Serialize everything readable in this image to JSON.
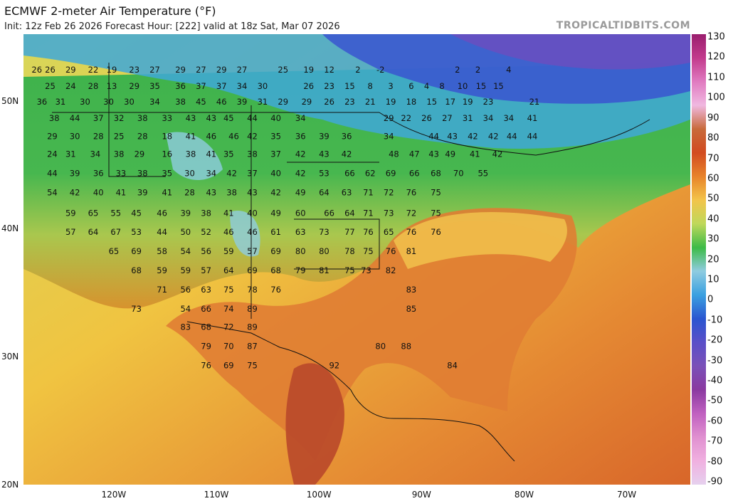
{
  "header": {
    "title": "ECMWF 2-meter Air Temperature (°F)",
    "subtitle": "Init: 12z Feb 26 2026   Forecast Hour: [222]   valid at 18z Sat, Mar 07 2026",
    "credit": "TROPICALTIDBITS.COM"
  },
  "axes": {
    "lat_labels": [
      "50N",
      "40N",
      "30N",
      "20N"
    ],
    "lon_labels": [
      "120W",
      "110W",
      "100W",
      "90W",
      "80W",
      "70W"
    ]
  },
  "colorbar": {
    "labels": [
      "130",
      "120",
      "110",
      "100",
      "90",
      "80",
      "70",
      "60",
      "50",
      "40",
      "30",
      "20",
      "10",
      "0",
      "-10",
      "-20",
      "-30",
      "-40",
      "-50",
      "-60",
      "-70",
      "-80",
      "-90"
    ],
    "colors": [
      "#9a1e6e",
      "#c23a8c",
      "#e07ac0",
      "#f0b8e0",
      "#c86a3a",
      "#d24b20",
      "#e8832a",
      "#f3c44a",
      "#bfd85a",
      "#3dbb47",
      "#8fcce0",
      "#3aa0e0",
      "#2a55d0",
      "#5a4fc8",
      "#7a50b8",
      "#8a3aa0",
      "#c060c0",
      "#e090d0",
      "#f0b0e0",
      "#e6d0ee"
    ]
  },
  "temps": [
    {
      "v": "26",
      "lon": -127.5,
      "lat": 52.4
    },
    {
      "v": "26",
      "lon": -126.2,
      "lat": 52.4
    },
    {
      "v": "29",
      "lon": -124.2,
      "lat": 52.4
    },
    {
      "v": "22",
      "lon": -122.0,
      "lat": 52.4
    },
    {
      "v": "19",
      "lon": -120.2,
      "lat": 52.4
    },
    {
      "v": "23",
      "lon": -118.0,
      "lat": 52.4
    },
    {
      "v": "27",
      "lon": -116.0,
      "lat": 52.4
    },
    {
      "v": "29",
      "lon": -113.5,
      "lat": 52.4
    },
    {
      "v": "27",
      "lon": -111.5,
      "lat": 52.4
    },
    {
      "v": "29",
      "lon": -109.5,
      "lat": 52.4
    },
    {
      "v": "27",
      "lon": -107.5,
      "lat": 52.4
    },
    {
      "v": "25",
      "lon": -103.5,
      "lat": 52.4
    },
    {
      "v": "19",
      "lon": -101.0,
      "lat": 52.4
    },
    {
      "v": "12",
      "lon": -99.0,
      "lat": 52.4
    },
    {
      "v": "2",
      "lon": -96.2,
      "lat": 52.4
    },
    {
      "v": "-2",
      "lon": -94.0,
      "lat": 52.4
    },
    {
      "v": "2",
      "lon": -86.5,
      "lat": 52.4
    },
    {
      "v": "2",
      "lon": -84.5,
      "lat": 52.4
    },
    {
      "v": "4",
      "lon": -81.5,
      "lat": 52.4
    },
    {
      "v": "25",
      "lon": -126.2,
      "lat": 51.1
    },
    {
      "v": "24",
      "lon": -124.2,
      "lat": 51.1
    },
    {
      "v": "28",
      "lon": -122.0,
      "lat": 51.1
    },
    {
      "v": "13",
      "lon": -120.2,
      "lat": 51.1
    },
    {
      "v": "29",
      "lon": -118.0,
      "lat": 51.1
    },
    {
      "v": "35",
      "lon": -116.0,
      "lat": 51.1
    },
    {
      "v": "36",
      "lon": -113.5,
      "lat": 51.1
    },
    {
      "v": "37",
      "lon": -111.5,
      "lat": 51.1
    },
    {
      "v": "37",
      "lon": -109.5,
      "lat": 51.1
    },
    {
      "v": "34",
      "lon": -107.5,
      "lat": 51.1
    },
    {
      "v": "30",
      "lon": -105.5,
      "lat": 51.1
    },
    {
      "v": "26",
      "lon": -101.0,
      "lat": 51.1
    },
    {
      "v": "23",
      "lon": -99.0,
      "lat": 51.1
    },
    {
      "v": "15",
      "lon": -97.0,
      "lat": 51.1
    },
    {
      "v": "8",
      "lon": -95.0,
      "lat": 51.1
    },
    {
      "v": "3",
      "lon": -93.0,
      "lat": 51.1
    },
    {
      "v": "6",
      "lon": -91.0,
      "lat": 51.1
    },
    {
      "v": "4",
      "lon": -89.5,
      "lat": 51.1
    },
    {
      "v": "8",
      "lon": -88.0,
      "lat": 51.1
    },
    {
      "v": "10",
      "lon": -86.0,
      "lat": 51.1
    },
    {
      "v": "15",
      "lon": -84.2,
      "lat": 51.1
    },
    {
      "v": "15",
      "lon": -82.5,
      "lat": 51.1
    },
    {
      "v": "36",
      "lon": -127.0,
      "lat": 49.9
    },
    {
      "v": "31",
      "lon": -125.2,
      "lat": 49.9
    },
    {
      "v": "30",
      "lon": -122.8,
      "lat": 49.9
    },
    {
      "v": "30",
      "lon": -120.5,
      "lat": 49.9
    },
    {
      "v": "30",
      "lon": -118.5,
      "lat": 49.9
    },
    {
      "v": "34",
      "lon": -116.0,
      "lat": 49.9
    },
    {
      "v": "38",
      "lon": -113.5,
      "lat": 49.9
    },
    {
      "v": "45",
      "lon": -111.5,
      "lat": 49.9
    },
    {
      "v": "46",
      "lon": -109.5,
      "lat": 49.9
    },
    {
      "v": "39",
      "lon": -107.5,
      "lat": 49.9
    },
    {
      "v": "31",
      "lon": -105.5,
      "lat": 49.9
    },
    {
      "v": "29",
      "lon": -103.5,
      "lat": 49.9
    },
    {
      "v": "29",
      "lon": -101.2,
      "lat": 49.9
    },
    {
      "v": "26",
      "lon": -99.0,
      "lat": 49.9
    },
    {
      "v": "23",
      "lon": -97.0,
      "lat": 49.9
    },
    {
      "v": "21",
      "lon": -95.0,
      "lat": 49.9
    },
    {
      "v": "19",
      "lon": -93.0,
      "lat": 49.9
    },
    {
      "v": "18",
      "lon": -91.0,
      "lat": 49.9
    },
    {
      "v": "15",
      "lon": -89.0,
      "lat": 49.9
    },
    {
      "v": "17",
      "lon": -87.2,
      "lat": 49.9
    },
    {
      "v": "19",
      "lon": -85.5,
      "lat": 49.9
    },
    {
      "v": "23",
      "lon": -83.5,
      "lat": 49.9
    },
    {
      "v": "21",
      "lon": -79.0,
      "lat": 49.9
    },
    {
      "v": "38",
      "lon": -125.8,
      "lat": 48.6
    },
    {
      "v": "44",
      "lon": -123.8,
      "lat": 48.6
    },
    {
      "v": "37",
      "lon": -121.5,
      "lat": 48.6
    },
    {
      "v": "32",
      "lon": -119.5,
      "lat": 48.6
    },
    {
      "v": "38",
      "lon": -117.2,
      "lat": 48.6
    },
    {
      "v": "33",
      "lon": -114.8,
      "lat": 48.6
    },
    {
      "v": "43",
      "lon": -112.5,
      "lat": 48.6
    },
    {
      "v": "43",
      "lon": -110.5,
      "lat": 48.6
    },
    {
      "v": "45",
      "lon": -108.8,
      "lat": 48.6
    },
    {
      "v": "44",
      "lon": -106.5,
      "lat": 48.6
    },
    {
      "v": "40",
      "lon": -104.2,
      "lat": 48.6
    },
    {
      "v": "34",
      "lon": -101.8,
      "lat": 48.6
    },
    {
      "v": "29",
      "lon": -93.2,
      "lat": 48.6
    },
    {
      "v": "22",
      "lon": -91.5,
      "lat": 48.6
    },
    {
      "v": "26",
      "lon": -89.5,
      "lat": 48.6
    },
    {
      "v": "27",
      "lon": -87.5,
      "lat": 48.6
    },
    {
      "v": "31",
      "lon": -85.5,
      "lat": 48.6
    },
    {
      "v": "34",
      "lon": -83.5,
      "lat": 48.6
    },
    {
      "v": "34",
      "lon": -81.5,
      "lat": 48.6
    },
    {
      "v": "41",
      "lon": -79.2,
      "lat": 48.6
    },
    {
      "v": "29",
      "lon": -126.0,
      "lat": 47.2
    },
    {
      "v": "30",
      "lon": -123.8,
      "lat": 47.2
    },
    {
      "v": "28",
      "lon": -121.5,
      "lat": 47.2
    },
    {
      "v": "25",
      "lon": -119.5,
      "lat": 47.2
    },
    {
      "v": "28",
      "lon": -117.2,
      "lat": 47.2
    },
    {
      "v": "18",
      "lon": -114.8,
      "lat": 47.2
    },
    {
      "v": "41",
      "lon": -112.5,
      "lat": 47.2
    },
    {
      "v": "46",
      "lon": -110.5,
      "lat": 47.2
    },
    {
      "v": "46",
      "lon": -108.3,
      "lat": 47.2
    },
    {
      "v": "42",
      "lon": -106.5,
      "lat": 47.2
    },
    {
      "v": "35",
      "lon": -104.2,
      "lat": 47.2
    },
    {
      "v": "36",
      "lon": -101.8,
      "lat": 47.2
    },
    {
      "v": "39",
      "lon": -99.5,
      "lat": 47.2
    },
    {
      "v": "36",
      "lon": -97.3,
      "lat": 47.2
    },
    {
      "v": "34",
      "lon": -93.2,
      "lat": 47.2
    },
    {
      "v": "44",
      "lon": -88.8,
      "lat": 47.2
    },
    {
      "v": "43",
      "lon": -87.0,
      "lat": 47.2
    },
    {
      "v": "42",
      "lon": -85.0,
      "lat": 47.2
    },
    {
      "v": "42",
      "lon": -83.0,
      "lat": 47.2
    },
    {
      "v": "44",
      "lon": -81.2,
      "lat": 47.2
    },
    {
      "v": "44",
      "lon": -79.2,
      "lat": 47.2
    },
    {
      "v": "24",
      "lon": -126.0,
      "lat": 45.8
    },
    {
      "v": "31",
      "lon": -124.2,
      "lat": 45.8
    },
    {
      "v": "34",
      "lon": -121.8,
      "lat": 45.8
    },
    {
      "v": "38",
      "lon": -119.5,
      "lat": 45.8
    },
    {
      "v": "29",
      "lon": -117.5,
      "lat": 45.8
    },
    {
      "v": "16",
      "lon": -114.8,
      "lat": 45.8
    },
    {
      "v": "38",
      "lon": -112.5,
      "lat": 45.8
    },
    {
      "v": "41",
      "lon": -110.5,
      "lat": 45.8
    },
    {
      "v": "35",
      "lon": -108.8,
      "lat": 45.8
    },
    {
      "v": "38",
      "lon": -106.5,
      "lat": 45.8
    },
    {
      "v": "37",
      "lon": -104.2,
      "lat": 45.8
    },
    {
      "v": "42",
      "lon": -101.8,
      "lat": 45.8
    },
    {
      "v": "43",
      "lon": -99.5,
      "lat": 45.8
    },
    {
      "v": "42",
      "lon": -97.3,
      "lat": 45.8
    },
    {
      "v": "48",
      "lon": -92.7,
      "lat": 45.8
    },
    {
      "v": "47",
      "lon": -90.7,
      "lat": 45.8
    },
    {
      "v": "43",
      "lon": -88.8,
      "lat": 45.8
    },
    {
      "v": "49",
      "lon": -87.2,
      "lat": 45.8
    },
    {
      "v": "41",
      "lon": -84.8,
      "lat": 45.8
    },
    {
      "v": "42",
      "lon": -82.6,
      "lat": 45.8
    },
    {
      "v": "44",
      "lon": -126.0,
      "lat": 44.3
    },
    {
      "v": "39",
      "lon": -123.8,
      "lat": 44.3
    },
    {
      "v": "36",
      "lon": -121.5,
      "lat": 44.3
    },
    {
      "v": "33",
      "lon": -119.3,
      "lat": 44.3
    },
    {
      "v": "38",
      "lon": -117.2,
      "lat": 44.3
    },
    {
      "v": "35",
      "lon": -114.8,
      "lat": 44.3
    },
    {
      "v": "30",
      "lon": -112.6,
      "lat": 44.3
    },
    {
      "v": "34",
      "lon": -110.5,
      "lat": 44.3
    },
    {
      "v": "42",
      "lon": -108.5,
      "lat": 44.3
    },
    {
      "v": "37",
      "lon": -106.5,
      "lat": 44.3
    },
    {
      "v": "40",
      "lon": -104.2,
      "lat": 44.3
    },
    {
      "v": "42",
      "lon": -101.8,
      "lat": 44.3
    },
    {
      "v": "53",
      "lon": -99.5,
      "lat": 44.3
    },
    {
      "v": "66",
      "lon": -97.0,
      "lat": 44.3
    },
    {
      "v": "62",
      "lon": -95.0,
      "lat": 44.3
    },
    {
      "v": "69",
      "lon": -93.0,
      "lat": 44.3
    },
    {
      "v": "66",
      "lon": -90.7,
      "lat": 44.3
    },
    {
      "v": "68",
      "lon": -88.6,
      "lat": 44.3
    },
    {
      "v": "70",
      "lon": -86.4,
      "lat": 44.3
    },
    {
      "v": "55",
      "lon": -84.0,
      "lat": 44.3
    },
    {
      "v": "54",
      "lon": -126.0,
      "lat": 42.8
    },
    {
      "v": "42",
      "lon": -123.8,
      "lat": 42.8
    },
    {
      "v": "40",
      "lon": -121.5,
      "lat": 42.8
    },
    {
      "v": "41",
      "lon": -119.3,
      "lat": 42.8
    },
    {
      "v": "39",
      "lon": -117.2,
      "lat": 42.8
    },
    {
      "v": "41",
      "lon": -114.8,
      "lat": 42.8
    },
    {
      "v": "28",
      "lon": -112.6,
      "lat": 42.8
    },
    {
      "v": "43",
      "lon": -110.5,
      "lat": 42.8
    },
    {
      "v": "38",
      "lon": -108.5,
      "lat": 42.8
    },
    {
      "v": "43",
      "lon": -106.5,
      "lat": 42.8
    },
    {
      "v": "42",
      "lon": -104.2,
      "lat": 42.8
    },
    {
      "v": "49",
      "lon": -101.8,
      "lat": 42.8
    },
    {
      "v": "64",
      "lon": -99.5,
      "lat": 42.8
    },
    {
      "v": "63",
      "lon": -97.3,
      "lat": 42.8
    },
    {
      "v": "71",
      "lon": -95.2,
      "lat": 42.8
    },
    {
      "v": "72",
      "lon": -93.2,
      "lat": 42.8
    },
    {
      "v": "76",
      "lon": -91.0,
      "lat": 42.8
    },
    {
      "v": "75",
      "lon": -88.6,
      "lat": 42.8
    },
    {
      "v": "59",
      "lon": -124.2,
      "lat": 41.2
    },
    {
      "v": "65",
      "lon": -122.0,
      "lat": 41.2
    },
    {
      "v": "55",
      "lon": -119.8,
      "lat": 41.2
    },
    {
      "v": "45",
      "lon": -117.8,
      "lat": 41.2
    },
    {
      "v": "46",
      "lon": -115.3,
      "lat": 41.2
    },
    {
      "v": "39",
      "lon": -113.0,
      "lat": 41.2
    },
    {
      "v": "38",
      "lon": -111.0,
      "lat": 41.2
    },
    {
      "v": "41",
      "lon": -108.8,
      "lat": 41.2
    },
    {
      "v": "40",
      "lon": -106.5,
      "lat": 41.2
    },
    {
      "v": "49",
      "lon": -104.2,
      "lat": 41.2
    },
    {
      "v": "60",
      "lon": -101.8,
      "lat": 41.2
    },
    {
      "v": "66",
      "lon": -99.0,
      "lat": 41.2
    },
    {
      "v": "64",
      "lon": -97.0,
      "lat": 41.2
    },
    {
      "v": "71",
      "lon": -95.2,
      "lat": 41.2
    },
    {
      "v": "73",
      "lon": -93.2,
      "lat": 41.2
    },
    {
      "v": "72",
      "lon": -91.0,
      "lat": 41.2
    },
    {
      "v": "75",
      "lon": -88.6,
      "lat": 41.2
    },
    {
      "v": "57",
      "lon": -124.2,
      "lat": 39.7
    },
    {
      "v": "64",
      "lon": -122.0,
      "lat": 39.7
    },
    {
      "v": "67",
      "lon": -119.8,
      "lat": 39.7
    },
    {
      "v": "53",
      "lon": -117.8,
      "lat": 39.7
    },
    {
      "v": "44",
      "lon": -115.3,
      "lat": 39.7
    },
    {
      "v": "50",
      "lon": -113.0,
      "lat": 39.7
    },
    {
      "v": "52",
      "lon": -111.0,
      "lat": 39.7
    },
    {
      "v": "46",
      "lon": -108.8,
      "lat": 39.7
    },
    {
      "v": "46",
      "lon": -106.5,
      "lat": 39.7
    },
    {
      "v": "61",
      "lon": -104.2,
      "lat": 39.7
    },
    {
      "v": "63",
      "lon": -101.8,
      "lat": 39.7
    },
    {
      "v": "73",
      "lon": -99.5,
      "lat": 39.7
    },
    {
      "v": "77",
      "lon": -97.0,
      "lat": 39.7
    },
    {
      "v": "76",
      "lon": -95.2,
      "lat": 39.7
    },
    {
      "v": "65",
      "lon": -93.2,
      "lat": 39.7
    },
    {
      "v": "76",
      "lon": -91.0,
      "lat": 39.7
    },
    {
      "v": "76",
      "lon": -88.6,
      "lat": 39.7
    },
    {
      "v": "65",
      "lon": -120.0,
      "lat": 38.2
    },
    {
      "v": "69",
      "lon": -117.8,
      "lat": 38.2
    },
    {
      "v": "58",
      "lon": -115.3,
      "lat": 38.2
    },
    {
      "v": "54",
      "lon": -113.0,
      "lat": 38.2
    },
    {
      "v": "56",
      "lon": -111.0,
      "lat": 38.2
    },
    {
      "v": "59",
      "lon": -108.8,
      "lat": 38.2
    },
    {
      "v": "57",
      "lon": -106.5,
      "lat": 38.2
    },
    {
      "v": "69",
      "lon": -104.2,
      "lat": 38.2
    },
    {
      "v": "80",
      "lon": -101.8,
      "lat": 38.2
    },
    {
      "v": "80",
      "lon": -99.5,
      "lat": 38.2
    },
    {
      "v": "78",
      "lon": -97.0,
      "lat": 38.2
    },
    {
      "v": "75",
      "lon": -95.2,
      "lat": 38.2
    },
    {
      "v": "76",
      "lon": -93.0,
      "lat": 38.2
    },
    {
      "v": "81",
      "lon": -91.0,
      "lat": 38.2
    },
    {
      "v": "68",
      "lon": -117.8,
      "lat": 36.7
    },
    {
      "v": "59",
      "lon": -115.3,
      "lat": 36.7
    },
    {
      "v": "59",
      "lon": -113.0,
      "lat": 36.7
    },
    {
      "v": "57",
      "lon": -111.0,
      "lat": 36.7
    },
    {
      "v": "64",
      "lon": -108.8,
      "lat": 36.7
    },
    {
      "v": "69",
      "lon": -106.5,
      "lat": 36.7
    },
    {
      "v": "68",
      "lon": -104.2,
      "lat": 36.7
    },
    {
      "v": "79",
      "lon": -101.8,
      "lat": 36.7
    },
    {
      "v": "81",
      "lon": -99.5,
      "lat": 36.7
    },
    {
      "v": "75",
      "lon": -97.0,
      "lat": 36.7
    },
    {
      "v": "73",
      "lon": -95.4,
      "lat": 36.7
    },
    {
      "v": "82",
      "lon": -93.0,
      "lat": 36.7
    },
    {
      "v": "71",
      "lon": -115.3,
      "lat": 35.2
    },
    {
      "v": "56",
      "lon": -113.0,
      "lat": 35.2
    },
    {
      "v": "63",
      "lon": -111.0,
      "lat": 35.2
    },
    {
      "v": "75",
      "lon": -108.8,
      "lat": 35.2
    },
    {
      "v": "78",
      "lon": -106.5,
      "lat": 35.2
    },
    {
      "v": "76",
      "lon": -104.2,
      "lat": 35.2
    },
    {
      "v": "83",
      "lon": -91.0,
      "lat": 35.2
    },
    {
      "v": "73",
      "lon": -117.8,
      "lat": 33.7
    },
    {
      "v": "54",
      "lon": -113.0,
      "lat": 33.7
    },
    {
      "v": "66",
      "lon": -111.0,
      "lat": 33.7
    },
    {
      "v": "74",
      "lon": -108.8,
      "lat": 33.7
    },
    {
      "v": "89",
      "lon": -106.5,
      "lat": 33.7
    },
    {
      "v": "85",
      "lon": -91.0,
      "lat": 33.7
    },
    {
      "v": "83",
      "lon": -113.0,
      "lat": 32.3
    },
    {
      "v": "68",
      "lon": -111.0,
      "lat": 32.3
    },
    {
      "v": "72",
      "lon": -108.8,
      "lat": 32.3
    },
    {
      "v": "89",
      "lon": -106.5,
      "lat": 32.3
    },
    {
      "v": "79",
      "lon": -111.0,
      "lat": 30.8
    },
    {
      "v": "70",
      "lon": -108.8,
      "lat": 30.8
    },
    {
      "v": "87",
      "lon": -106.5,
      "lat": 30.8
    },
    {
      "v": "80",
      "lon": -94.0,
      "lat": 30.8
    },
    {
      "v": "88",
      "lon": -91.5,
      "lat": 30.8
    },
    {
      "v": "76",
      "lon": -111.0,
      "lat": 29.3
    },
    {
      "v": "69",
      "lon": -108.8,
      "lat": 29.3
    },
    {
      "v": "75",
      "lon": -106.5,
      "lat": 29.3
    },
    {
      "v": "92",
      "lon": -98.5,
      "lat": 29.3
    },
    {
      "v": "84",
      "lon": -87.0,
      "lat": 29.3
    }
  ]
}
